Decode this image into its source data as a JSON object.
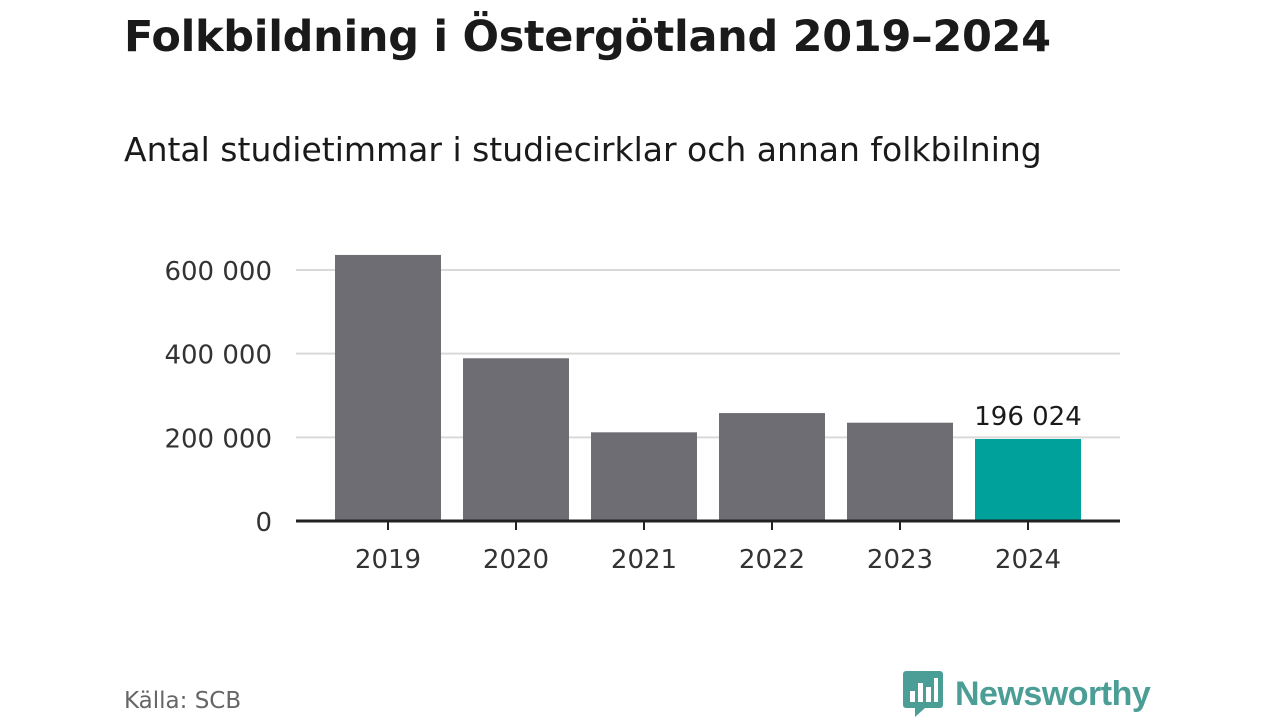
{
  "title": "Folkbildning i Östergötland 2019–2024",
  "subtitle": "Antal studietimmar i studiecirklar och annan folkbilning",
  "source": "Källa: SCB",
  "brand": {
    "name": "Newsworthy",
    "color": "#4a9e96"
  },
  "colors": {
    "bar": "#6e6d73",
    "highlight": "#00a19a",
    "grid": "#d9d9d9",
    "axis": "#222222"
  },
  "chart_data": {
    "type": "bar",
    "categories": [
      "2019",
      "2020",
      "2021",
      "2022",
      "2023",
      "2024"
    ],
    "values": [
      636000,
      389000,
      212000,
      258000,
      235000,
      196024
    ],
    "highlight_index": 5,
    "data_labels": [
      {
        "index": 5,
        "text": "196 024"
      }
    ],
    "ylim": [
      0,
      650000
    ],
    "yticks": [
      0,
      200000,
      400000,
      600000
    ],
    "ytick_labels": [
      "0",
      "200 000",
      "400 000",
      "600 000"
    ],
    "grid": true,
    "xlabel": "",
    "ylabel": ""
  }
}
